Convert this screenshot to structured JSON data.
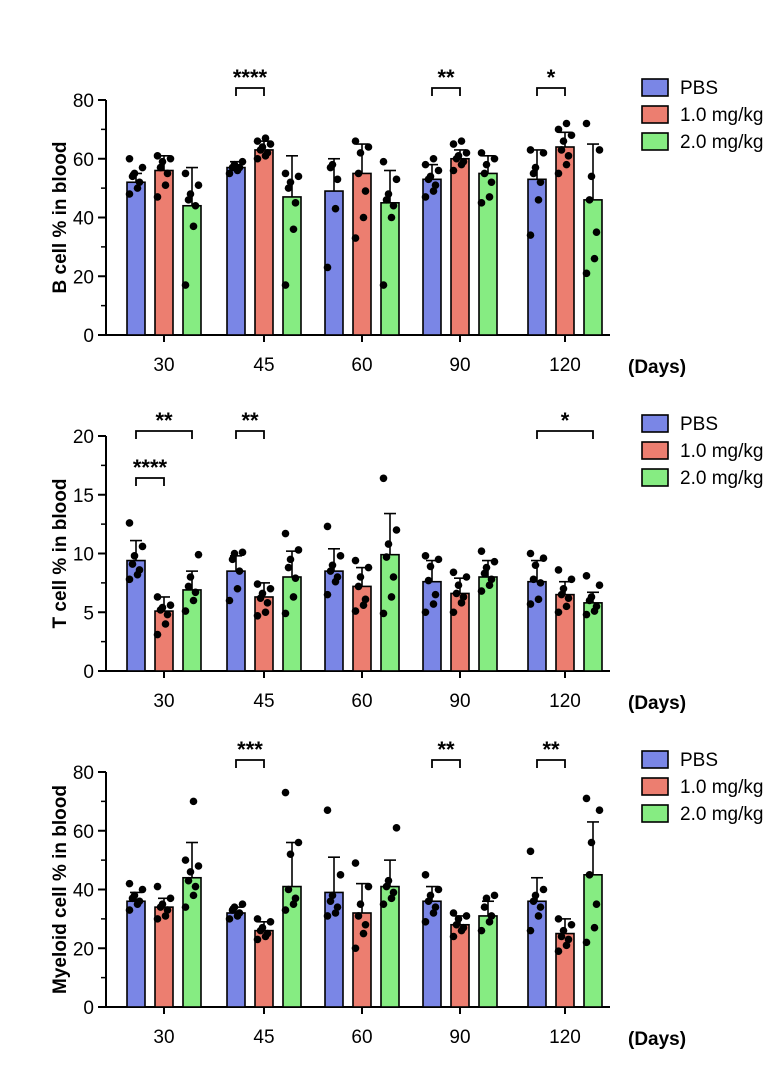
{
  "colors": {
    "PBS": "#7a86e6",
    "1.0 mg/kg": "#ec7e70",
    "2.0 mg/kg": "#86ec82",
    "axis": "#000000",
    "dot": "#000000"
  },
  "chart_data": [
    {
      "type": "bar",
      "title": "",
      "xlabel": "(Days)",
      "ylabel": "B cell % in blood",
      "ylim": [
        0,
        80
      ],
      "yticks": [
        0,
        20,
        40,
        60,
        80
      ],
      "categories": [
        "30",
        "45",
        "60",
        "90",
        "120"
      ],
      "series": [
        {
          "name": "PBS",
          "values": [
            52,
            57,
            49,
            53,
            53
          ],
          "errors": [
            3,
            2,
            11,
            5,
            10
          ],
          "points": [
            [
              48,
              50,
              52,
              54,
              55,
              57,
              60
            ],
            [
              55,
              56,
              57,
              57,
              58,
              59
            ],
            [
              23,
              43,
              53,
              57,
              58
            ],
            [
              47,
              49,
              51,
              53,
              54,
              56,
              58,
              60
            ],
            [
              34,
              46,
              52,
              55,
              57,
              62,
              63
            ]
          ]
        },
        {
          "name": "1.0 mg/kg",
          "values": [
            56,
            63,
            55,
            60,
            64
          ],
          "errors": [
            5,
            3,
            10,
            3,
            5
          ],
          "points": [
            [
              47,
              51,
              55,
              57,
              59,
              60,
              61
            ],
            [
              60,
              61,
              62,
              63,
              64,
              65,
              66,
              67
            ],
            [
              33,
              40,
              49,
              55,
              62,
              64,
              66
            ],
            [
              56,
              58,
              59,
              60,
              61,
              62,
              65,
              66
            ],
            [
              55,
              58,
              61,
              63,
              66,
              68,
              70,
              72
            ]
          ]
        },
        {
          "name": "2.0 mg/kg",
          "values": [
            44,
            47,
            45,
            55,
            46
          ],
          "errors": [
            13,
            14,
            11,
            6,
            19
          ],
          "points": [
            [
              17,
              37,
              44,
              46,
              48,
              51,
              55
            ],
            [
              17,
              36,
              45,
              50,
              52,
              54,
              55
            ],
            [
              17,
              40,
              44,
              46,
              48,
              53,
              59
            ],
            [
              45,
              47,
              52,
              55,
              58,
              60,
              62
            ],
            [
              21,
              26,
              35,
              46,
              54,
              63,
              72
            ]
          ]
        }
      ],
      "significance": [
        {
          "category": "45",
          "from": "PBS",
          "to": "1.0 mg/kg",
          "stars": "****",
          "level": 0
        },
        {
          "category": "90",
          "from": "PBS",
          "to": "1.0 mg/kg",
          "stars": "**",
          "level": 0
        },
        {
          "category": "120",
          "from": "PBS",
          "to": "1.0 mg/kg",
          "stars": "*",
          "level": 0
        }
      ],
      "legend": [
        "PBS",
        "1.0 mg/kg",
        "2.0 mg/kg"
      ]
    },
    {
      "type": "bar",
      "title": "",
      "xlabel": "(Days)",
      "ylabel": "T cell % in blood",
      "ylim": [
        0,
        20
      ],
      "yticks": [
        0,
        5,
        10,
        15,
        20
      ],
      "categories": [
        "30",
        "45",
        "60",
        "90",
        "120"
      ],
      "series": [
        {
          "name": "PBS",
          "values": [
            9.4,
            8.5,
            8.5,
            7.6,
            7.6
          ],
          "errors": [
            1.7,
            1.3,
            1.9,
            1.8,
            1.8
          ],
          "points": [
            [
              7.8,
              8.2,
              8.6,
              9.1,
              9.8,
              10.6,
              12.6
            ],
            [
              6.0,
              7.0,
              8.5,
              9.5,
              10.0,
              10.1
            ],
            [
              6.5,
              7.6,
              8.0,
              8.5,
              9.0,
              9.8,
              12.3
            ],
            [
              5.0,
              5.7,
              6.5,
              7.7,
              8.9,
              9.5,
              9.8
            ],
            [
              5.7,
              6.1,
              7.5,
              7.8,
              9.0,
              9.6,
              10.0
            ]
          ]
        },
        {
          "name": "1.0 mg/kg",
          "values": [
            5.1,
            6.3,
            7.2,
            6.6,
            6.5
          ],
          "errors": [
            1.2,
            1.2,
            1.6,
            1.3,
            1.1
          ],
          "points": [
            [
              3.1,
              4.0,
              4.8,
              5.2,
              5.4,
              5.6,
              6.3
            ],
            [
              4.7,
              5.0,
              5.8,
              6.2,
              6.6,
              7.0,
              7.4
            ],
            [
              5.1,
              5.6,
              6.1,
              7.2,
              8.0,
              8.8,
              9.4
            ],
            [
              5.0,
              5.8,
              6.3,
              6.6,
              7.3,
              8.0,
              8.4
            ],
            [
              5.0,
              5.5,
              6.2,
              6.5,
              7.0,
              7.8,
              8.6
            ]
          ]
        },
        {
          "name": "2.0 mg/kg",
          "values": [
            6.9,
            8.0,
            9.9,
            8.0,
            5.8
          ],
          "errors": [
            1.6,
            2.2,
            3.5,
            1.4,
            0.9
          ],
          "points": [
            [
              5.1,
              6.0,
              6.7,
              7.2,
              8.0,
              9.9
            ],
            [
              4.9,
              6.3,
              7.9,
              8.8,
              9.5,
              10.3,
              11.7
            ],
            [
              4.9,
              6.3,
              8.0,
              9.7,
              10.8,
              12.0,
              16.4
            ],
            [
              6.8,
              7.3,
              7.8,
              8.3,
              8.8,
              9.3,
              10.2
            ],
            [
              4.8,
              5.1,
              5.5,
              6.0,
              6.3,
              7.3,
              8.1
            ]
          ]
        }
      ],
      "significance": [
        {
          "category": "30",
          "from": "PBS",
          "to": "2.0 mg/kg",
          "stars": "**",
          "level": 1
        },
        {
          "category": "30",
          "from": "PBS",
          "to": "1.0 mg/kg",
          "stars": "****",
          "level": 0
        },
        {
          "category": "45",
          "from": "PBS",
          "to": "1.0 mg/kg",
          "stars": "**",
          "level": 1
        },
        {
          "category": "120",
          "from": "PBS",
          "to": "2.0 mg/kg",
          "stars": "*",
          "level": 1
        }
      ],
      "legend": [
        "PBS",
        "1.0 mg/kg",
        "2.0 mg/kg"
      ]
    },
    {
      "type": "bar",
      "title": "",
      "xlabel": "(Days)",
      "ylabel": "Myeloid cell % in blood",
      "ylim": [
        0,
        80
      ],
      "yticks": [
        0,
        20,
        40,
        60,
        80
      ],
      "categories": [
        "30",
        "45",
        "60",
        "90",
        "120"
      ],
      "series": [
        {
          "name": "PBS",
          "values": [
            36,
            32,
            39,
            36,
            36
          ],
          "errors": [
            3,
            2,
            12,
            5,
            8
          ],
          "points": [
            [
              33,
              35,
              36,
              37,
              38,
              40,
              42
            ],
            [
              30,
              31,
              32,
              33,
              34,
              35
            ],
            [
              31,
              32,
              34,
              36,
              38,
              45,
              67
            ],
            [
              29,
              32,
              34,
              36,
              38,
              40,
              45
            ],
            [
              26,
              31,
              34,
              36,
              38,
              40,
              53
            ]
          ]
        },
        {
          "name": "1.0 mg/kg",
          "values": [
            34,
            26,
            32,
            28,
            25
          ],
          "errors": [
            3,
            3,
            10,
            3,
            5
          ],
          "points": [
            [
              30,
              31,
              33,
              34,
              35,
              37,
              41
            ],
            [
              23,
              24,
              25,
              26,
              27,
              29,
              30
            ],
            [
              20,
              25,
              28,
              31,
              35,
              41,
              49
            ],
            [
              24,
              26,
              27,
              28,
              30,
              31,
              32
            ],
            [
              19,
              21,
              23,
              24,
              26,
              28,
              30
            ]
          ]
        },
        {
          "name": "2.0 mg/kg",
          "values": [
            44,
            41,
            41,
            31,
            45
          ],
          "errors": [
            12,
            15,
            9,
            5,
            18
          ],
          "points": [
            [
              34,
              38,
              41,
              43,
              46,
              48,
              50,
              70
            ],
            [
              33,
              35,
              37,
              40,
              52,
              56,
              73
            ],
            [
              35,
              37,
              39,
              41,
              43,
              61
            ],
            [
              26,
              29,
              31,
              34,
              37,
              38
            ],
            [
              22,
              27,
              35,
              45,
              56,
              67,
              71
            ]
          ]
        }
      ],
      "significance": [
        {
          "category": "45",
          "from": "PBS",
          "to": "1.0 mg/kg",
          "stars": "***",
          "level": 0
        },
        {
          "category": "90",
          "from": "PBS",
          "to": "1.0 mg/kg",
          "stars": "**",
          "level": 0
        },
        {
          "category": "120",
          "from": "PBS",
          "to": "1.0 mg/kg",
          "stars": "**",
          "level": 0
        }
      ],
      "legend": [
        "PBS",
        "1.0 mg/kg",
        "2.0 mg/kg"
      ]
    }
  ]
}
